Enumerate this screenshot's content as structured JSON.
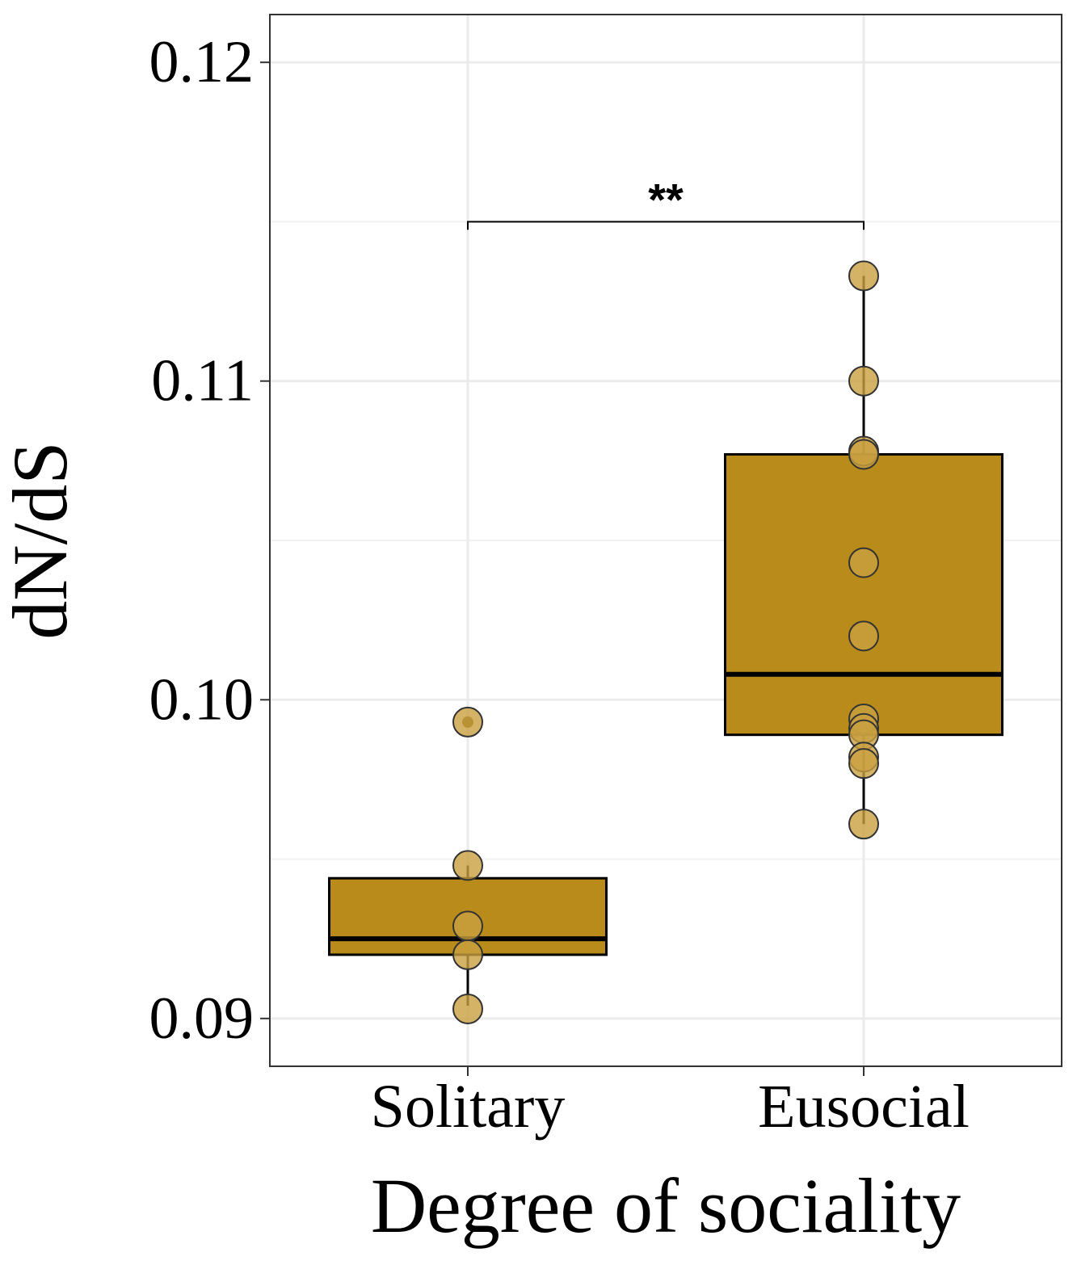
{
  "chart_data": {
    "type": "box",
    "xlabel": "Degree of sociality",
    "ylabel": "dN/dS",
    "ylim": [
      0.0885,
      0.1215
    ],
    "y_ticks": [
      0.09,
      0.1,
      0.11,
      0.12
    ],
    "y_tick_labels": [
      "0.09",
      "0.10",
      "0.11",
      "0.12"
    ],
    "categories": [
      "Solitary",
      "Eusocial"
    ],
    "grid": true,
    "legend": "none",
    "box_fill": "#B88B1A",
    "point_fill": "#C9A040",
    "boxes": [
      {
        "category": "Solitary",
        "whisker_low": 0.0904,
        "q1": 0.092,
        "median": 0.0925,
        "q3": 0.0944,
        "whisker_high": 0.0948,
        "outliers": [
          0.0993
        ],
        "points": [
          0.0993,
          0.0948,
          0.0929,
          0.092,
          0.0903
        ]
      },
      {
        "category": "Eusocial",
        "whisker_low": 0.0961,
        "q1": 0.0989,
        "median": 0.1008,
        "q3": 0.1077,
        "whisker_high": 0.1133,
        "outliers": [],
        "points": [
          0.1133,
          0.11,
          0.1078,
          0.1077,
          0.1043,
          0.102,
          0.0994,
          0.0991,
          0.0989,
          0.0982,
          0.098,
          0.0961
        ]
      }
    ],
    "significance": {
      "from": "Solitary",
      "to": "Eusocial",
      "label": "**",
      "y": 0.115
    }
  }
}
